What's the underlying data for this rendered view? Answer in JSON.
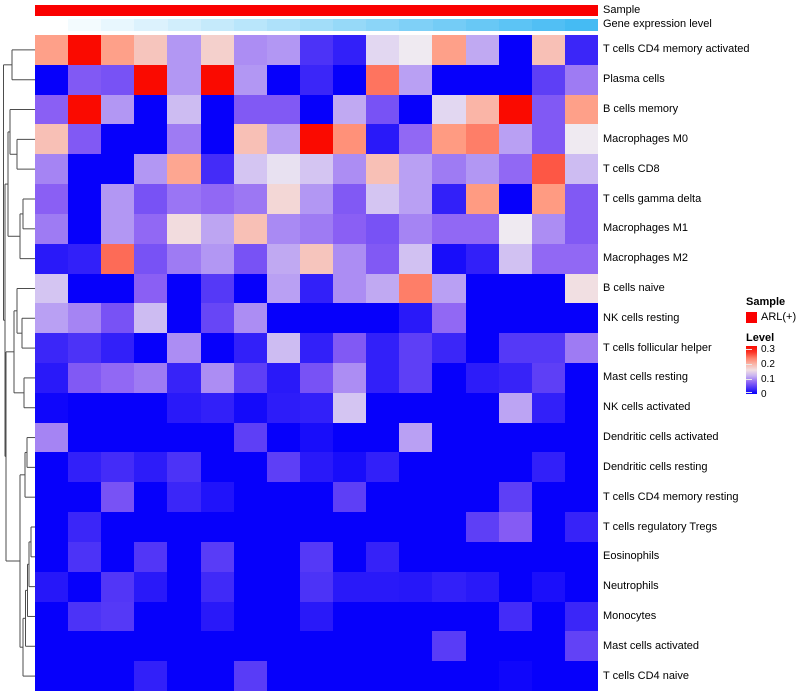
{
  "annotations": {
    "sample_label": "Sample",
    "gene_label": "Gene expression level",
    "sample_color": "#FA0000",
    "gene_gradient_start": "#FFFFFF",
    "gene_gradient_end": "#45BBF3"
  },
  "legend": {
    "sample_title": "Sample",
    "sample_item_label": "ARL(+)",
    "sample_item_color": "#FA0000",
    "level_title": "Level",
    "level_ticks": [
      "0.3",
      "0.2",
      "0.1",
      "0"
    ],
    "level_tick_values": [
      0.3,
      0.2,
      0.1,
      0
    ],
    "level_scale_max": 0.32
  },
  "chart_data": {
    "type": "heatmap",
    "columns": 17,
    "column_annotation": {
      "Sample": "ARL(+) for all columns",
      "Gene expression level": "gradient low (left, white) to high (right, cyan)"
    },
    "rows": [
      "T cells CD4 memory activated",
      "Plasma cells",
      "B cells memory",
      "Macrophages M0",
      "T cells CD8",
      "T cells gamma delta",
      "Macrophages M1",
      "Macrophages M2",
      "B cells naive",
      "NK cells resting",
      "T cells follicular helper",
      "Mast cells resting",
      "NK cells activated",
      "Dendritic cells activated",
      "Dendritic cells resting",
      "T cells CD4 memory resting",
      "T cells regulatory Tregs",
      "Eosinophils",
      "Neutrophils",
      "Monocytes",
      "Mast cells activated",
      "T cells CD4 naive"
    ],
    "values": [
      [
        0.22,
        0.3,
        0.22,
        0.185,
        0.105,
        0.175,
        0.1,
        0.105,
        0.04,
        0.025,
        0.14,
        0.15,
        0.22,
        0.115,
        0,
        0.19,
        0.03
      ],
      [
        0,
        0.07,
        0.065,
        0.3,
        0.105,
        0.3,
        0.105,
        0,
        0.03,
        0,
        0.245,
        0.11,
        0,
        0,
        0,
        0.05,
        0.09
      ],
      [
        0.075,
        0.3,
        0.105,
        0,
        0.125,
        0,
        0.07,
        0.07,
        0,
        0.115,
        0.065,
        0,
        0.14,
        0.2,
        0.3,
        0.07,
        0.22
      ],
      [
        0.19,
        0.07,
        0,
        0,
        0.09,
        0,
        0.19,
        0.11,
        0.3,
        0.23,
        0.02,
        0.08,
        0.225,
        0.24,
        0.11,
        0.07,
        0.15
      ],
      [
        0.095,
        0,
        0,
        0.105,
        0.215,
        0.035,
        0.13,
        0.145,
        0.13,
        0.1,
        0.19,
        0.11,
        0.09,
        0.105,
        0.08,
        0.26,
        0.125
      ],
      [
        0.075,
        0,
        0.105,
        0.065,
        0.087,
        0.08,
        0.088,
        0.168,
        0.105,
        0.07,
        0.13,
        0.11,
        0.025,
        0.225,
        0,
        0.225,
        0.07
      ],
      [
        0.09,
        0,
        0.105,
        0.08,
        0.163,
        0.113,
        0.19,
        0.098,
        0.09,
        0.075,
        0.065,
        0.095,
        0.08,
        0.08,
        0.15,
        0.1,
        0.07
      ],
      [
        0.02,
        0.025,
        0.25,
        0.065,
        0.09,
        0.105,
        0.065,
        0.115,
        0.185,
        0.1,
        0.07,
        0.128,
        0.01,
        0.025,
        0.128,
        0.08,
        0.08
      ],
      [
        0.13,
        0,
        0,
        0.075,
        0,
        0.045,
        0,
        0.11,
        0.025,
        0.1,
        0.115,
        0.24,
        0.11,
        0,
        0,
        0,
        0.16
      ],
      [
        0.11,
        0.095,
        0.065,
        0.125,
        0,
        0.055,
        0.1,
        0,
        0,
        0,
        0,
        0.02,
        0.08,
        0,
        0,
        0,
        0
      ],
      [
        0.03,
        0.04,
        0.025,
        0,
        0.1,
        0,
        0.025,
        0.125,
        0.025,
        0.07,
        0.025,
        0.05,
        0.03,
        0,
        0.045,
        0.045,
        0.09
      ],
      [
        0.02,
        0.07,
        0.08,
        0.09,
        0.028,
        0.1,
        0.05,
        0.02,
        0.065,
        0.1,
        0.025,
        0.05,
        0,
        0.022,
        0.028,
        0.05,
        0
      ],
      [
        0.005,
        0,
        0,
        0,
        0.02,
        0.025,
        0.008,
        0.022,
        0.025,
        0.13,
        0,
        0,
        0,
        0,
        0.112,
        0.025,
        0
      ],
      [
        0.095,
        0,
        0,
        0,
        0,
        0,
        0.05,
        0,
        0.01,
        0,
        0,
        0.11,
        0,
        0,
        0,
        0,
        0
      ],
      [
        0,
        0.025,
        0.035,
        0.022,
        0.04,
        0,
        0,
        0.05,
        0.02,
        0.01,
        0.025,
        0,
        0,
        0,
        0,
        0.025,
        0
      ],
      [
        0,
        0,
        0.065,
        0,
        0.03,
        0.015,
        0,
        0,
        0,
        0.05,
        0,
        0,
        0,
        0,
        0.05,
        0,
        0
      ],
      [
        0,
        0.03,
        0,
        0,
        0,
        0,
        0,
        0,
        0,
        0,
        0,
        0,
        0,
        0.05,
        0.072,
        0,
        0.028
      ],
      [
        0,
        0.04,
        0,
        0.043,
        0,
        0.047,
        0,
        0,
        0.045,
        0,
        0.027,
        0,
        0,
        0,
        0,
        0,
        0
      ],
      [
        0.018,
        0,
        0.043,
        0.02,
        0,
        0.033,
        0,
        0,
        0.04,
        0.02,
        0.02,
        0.018,
        0.025,
        0.02,
        0,
        0.012,
        0
      ],
      [
        0,
        0.04,
        0.045,
        0,
        0,
        0.02,
        0,
        0,
        0.02,
        0,
        0,
        0,
        0,
        0,
        0.035,
        0,
        0.03
      ],
      [
        0,
        0,
        0,
        0,
        0,
        0,
        0,
        0,
        0,
        0,
        0,
        0,
        0.047,
        0,
        0,
        0,
        0.052
      ],
      [
        0,
        0,
        0,
        0.025,
        0,
        0,
        0.047,
        0,
        0,
        0,
        0,
        0,
        0,
        0,
        0.005,
        0,
        0
      ]
    ],
    "color_scale": {
      "stops": [
        [
          0,
          "#0600FB"
        ],
        [
          0.075,
          "#8A5FF4"
        ],
        [
          0.15,
          "#EFEAF1"
        ],
        [
          0.225,
          "#FF9B82"
        ],
        [
          0.3,
          "#FA0A00"
        ]
      ],
      "label": "Level",
      "min": 0,
      "max": 0.3
    },
    "legend_position": "right",
    "title": "",
    "xlabel": "",
    "ylabel": ""
  },
  "dendrogram": {
    "line_color": "#4D4D4D",
    "merges": [
      [
        "L0",
        "L1",
        12
      ],
      [
        "L3",
        "L4",
        17
      ],
      [
        "L2",
        "N1",
        10
      ],
      [
        "L5",
        "L6",
        23
      ],
      [
        "N3",
        "L7",
        20
      ],
      [
        "N2",
        "N4",
        8
      ],
      [
        "L9",
        "L10",
        22
      ],
      [
        "L8",
        "N6",
        17
      ],
      [
        "L11",
        "L12",
        24
      ],
      [
        "N7",
        "N8",
        14
      ],
      [
        "L13",
        "L14",
        27
      ],
      [
        "N10",
        "L15",
        25
      ],
      [
        "L16",
        "L17",
        31
      ],
      [
        "N12",
        "L18",
        29
      ],
      [
        "N13",
        "L19",
        27.5
      ],
      [
        "N14",
        "L20",
        25.5
      ],
      [
        "N15",
        "L21",
        23
      ],
      [
        "N11",
        "N16",
        20
      ],
      [
        "N9",
        "N17",
        6
      ],
      [
        "N5",
        "N18",
        5
      ],
      [
        "N0",
        "N19",
        3.5
      ]
    ]
  }
}
